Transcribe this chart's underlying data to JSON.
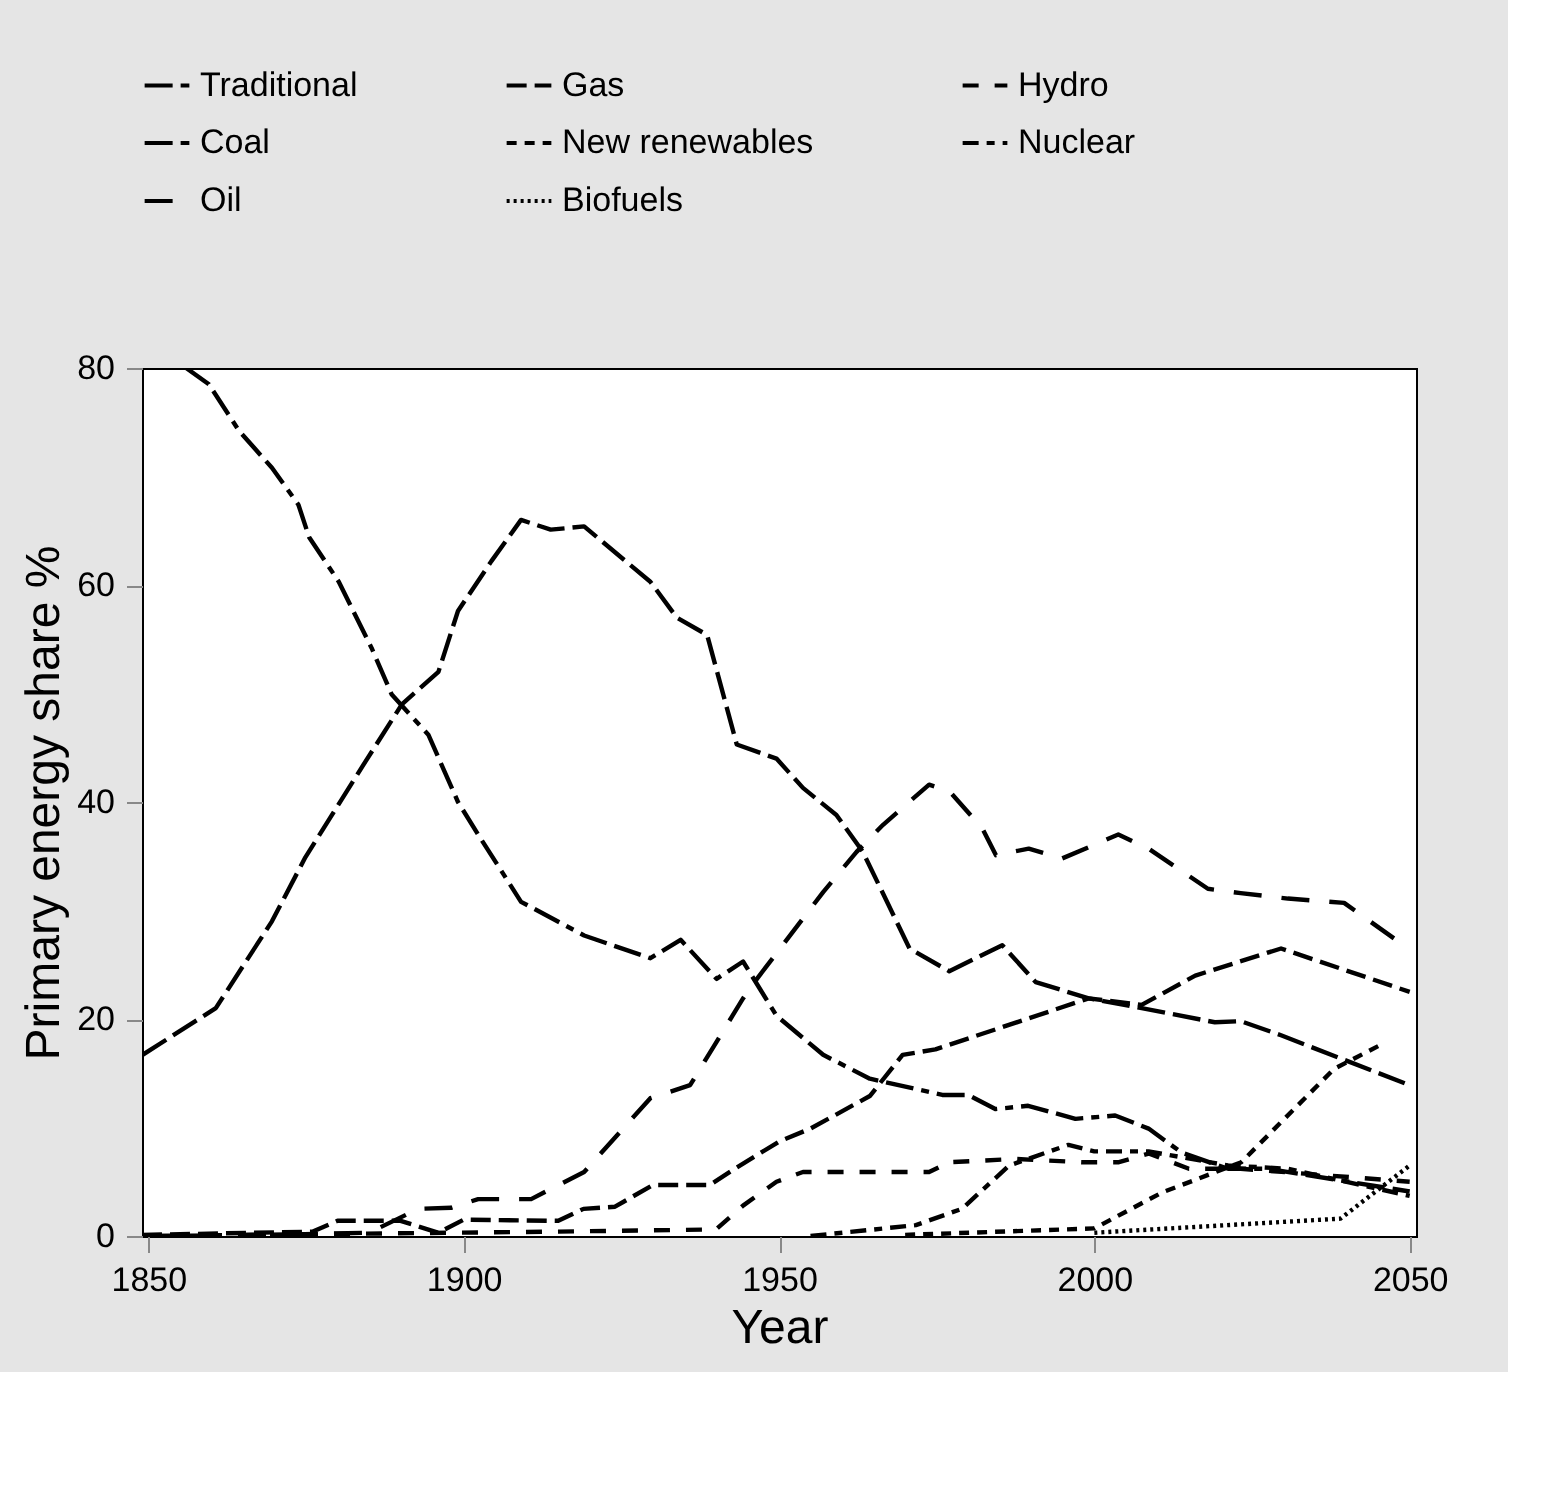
{
  "chart_data": {
    "type": "line",
    "xlabel": "Year",
    "ylabel": "Primary energy share %",
    "xlim": [
      1849,
      2051
    ],
    "ylim": [
      0,
      80
    ],
    "xticks": [
      1850,
      1900,
      1950,
      2000,
      2050
    ],
    "yticks": [
      0,
      20,
      40,
      60,
      80
    ],
    "grid": false,
    "legend": "top",
    "marker": "none",
    "series": [
      {
        "name": "Traditional",
        "color": "#000000",
        "line_style": "dashed",
        "x": [
          1856,
          1859.6,
          1864.4,
          1869.6,
          1873.8,
          1875.5,
          1880.2,
          1885.4,
          1888.6,
          1894.4,
          1899.1,
          1902.3,
          1909.1,
          1919.1,
          1929.6,
          1934.4,
          1940.1,
          1944.3,
          1949.6,
          1957,
          1964.4,
          1975.9,
          1980,
          1984.3,
          1989.5,
          1997,
          2003.3,
          2008.6,
          2013.8,
          2021.2,
          2027.5,
          2050
        ],
        "values": [
          80,
          78.5,
          74.2,
          70.8,
          67.4,
          64.4,
          60.3,
          54.2,
          49.9,
          46.2,
          40,
          37,
          30.8,
          27.7,
          25.6,
          27.3,
          23.7,
          25.3,
          20.3,
          16.7,
          14.5,
          13,
          13,
          11.7,
          12,
          10.8,
          11.1,
          9.9,
          7.7,
          6.2,
          6.2,
          4.1
        ]
      },
      {
        "name": "Gas",
        "color": "#000000",
        "line_style": "dashed",
        "x": [
          1849,
          1876,
          1880,
          1890,
          1896,
          1900,
          1915,
          1919,
          1924,
          1930,
          1939,
          1943,
          1950,
          1955,
          1964.4,
          1969.6,
          1974.8,
          1999.1,
          2007.5,
          2016,
          2029.6,
          2050
        ],
        "values": [
          0.1,
          0.4,
          1.4,
          1.4,
          0.3,
          1.5,
          1.4,
          2.5,
          2.7,
          4.7,
          4.7,
          6.2,
          8.7,
          9.9,
          12.9,
          16.7,
          17.2,
          21.9,
          21.3,
          24,
          26.5,
          22.5
        ]
      },
      {
        "name": "Hydro",
        "color": "#000000",
        "line_style": "dashed",
        "x": [
          1849,
          1914,
          1940,
          1944.3,
          1949.6,
          1953.8,
          1973.8,
          1977,
          1987.5,
          1998,
          2003.9,
          2008.6,
          2015,
          2023.2,
          2050
        ],
        "values": [
          0,
          0.4,
          0.6,
          2.8,
          5,
          5.9,
          5.9,
          6.8,
          7.1,
          6.8,
          6.8,
          7.6,
          6.2,
          6.2,
          5
        ]
      },
      {
        "name": "Coal",
        "color": "#000000",
        "line_style": "dashed",
        "x": [
          1849.1,
          1860.7,
          1869.6,
          1874.9,
          1884.4,
          1890.2,
          1896,
          1899.1,
          1904.4,
          1909.1,
          1913.8,
          1919.1,
          1929.6,
          1933.8,
          1938.6,
          1943.3,
          1949.6,
          1953.8,
          1959.1,
          1963.3,
          1970.7,
          1977,
          1985.4,
          1990.7,
          1999.1,
          2007.5,
          2019.1,
          2023.2,
          2029.6,
          2050
        ],
        "values": [
          16.7,
          21,
          29,
          34.9,
          43.7,
          49,
          52,
          57.6,
          62.2,
          66,
          65.1,
          65.4,
          60.3,
          57,
          55.4,
          45.3,
          44,
          41.3,
          38.8,
          35.4,
          26.5,
          24.4,
          26.8,
          23.4,
          21.9,
          21,
          19.7,
          19.8,
          18.5,
          13.9
        ]
      },
      {
        "name": "New renewables",
        "color": "#000000",
        "line_style": "dashed",
        "x": [
          1970,
          2000,
          2010.7,
          2023.3,
          2038,
          2045
        ],
        "values": [
          0.1,
          0.7,
          4,
          6.8,
          15.4,
          17.5
        ]
      },
      {
        "name": "Nuclear",
        "color": "#000000",
        "line_style": "dashed",
        "x": [
          1955,
          1971.7,
          1979,
          1986.5,
          1995.9,
          2000,
          2008.6,
          2021.2,
          2030.7,
          2050
        ],
        "values": [
          0,
          1,
          2.5,
          6.5,
          8.4,
          7.8,
          7.8,
          6.5,
          6.2,
          3.7
        ]
      },
      {
        "name": "Oil",
        "color": "#000000",
        "line_style": "dashed",
        "x": [
          1849,
          1870,
          1885,
          1892.8,
          1898,
          1902.3,
          1910.7,
          1919.1,
          1929.6,
          1935.9,
          1940.1,
          1944.3,
          1946.5,
          1957,
          1962.3,
          1966.5,
          1973.8,
          1977,
          1982.2,
          1984.4,
          1989.6,
          1994.9,
          2003.8,
          2008.6,
          2018,
          2023.2,
          2030.7,
          2039.6,
          2050
        ],
        "values": [
          0,
          0.1,
          0.3,
          2.5,
          2.6,
          3.4,
          3.4,
          5.9,
          12.7,
          13.9,
          17.9,
          21.9,
          23.7,
          31.7,
          35.4,
          37.9,
          41.6,
          41,
          37.6,
          35.1,
          35.7,
          34.8,
          37,
          35.7,
          32,
          31.6,
          31.1,
          30.7,
          26.4
        ]
      },
      {
        "name": "Biofuels",
        "color": "#000000",
        "line_style": "dotted",
        "x": [
          2000,
          2039,
          2050
        ],
        "values": [
          0.3,
          1.6,
          6.5
        ]
      }
    ]
  }
}
